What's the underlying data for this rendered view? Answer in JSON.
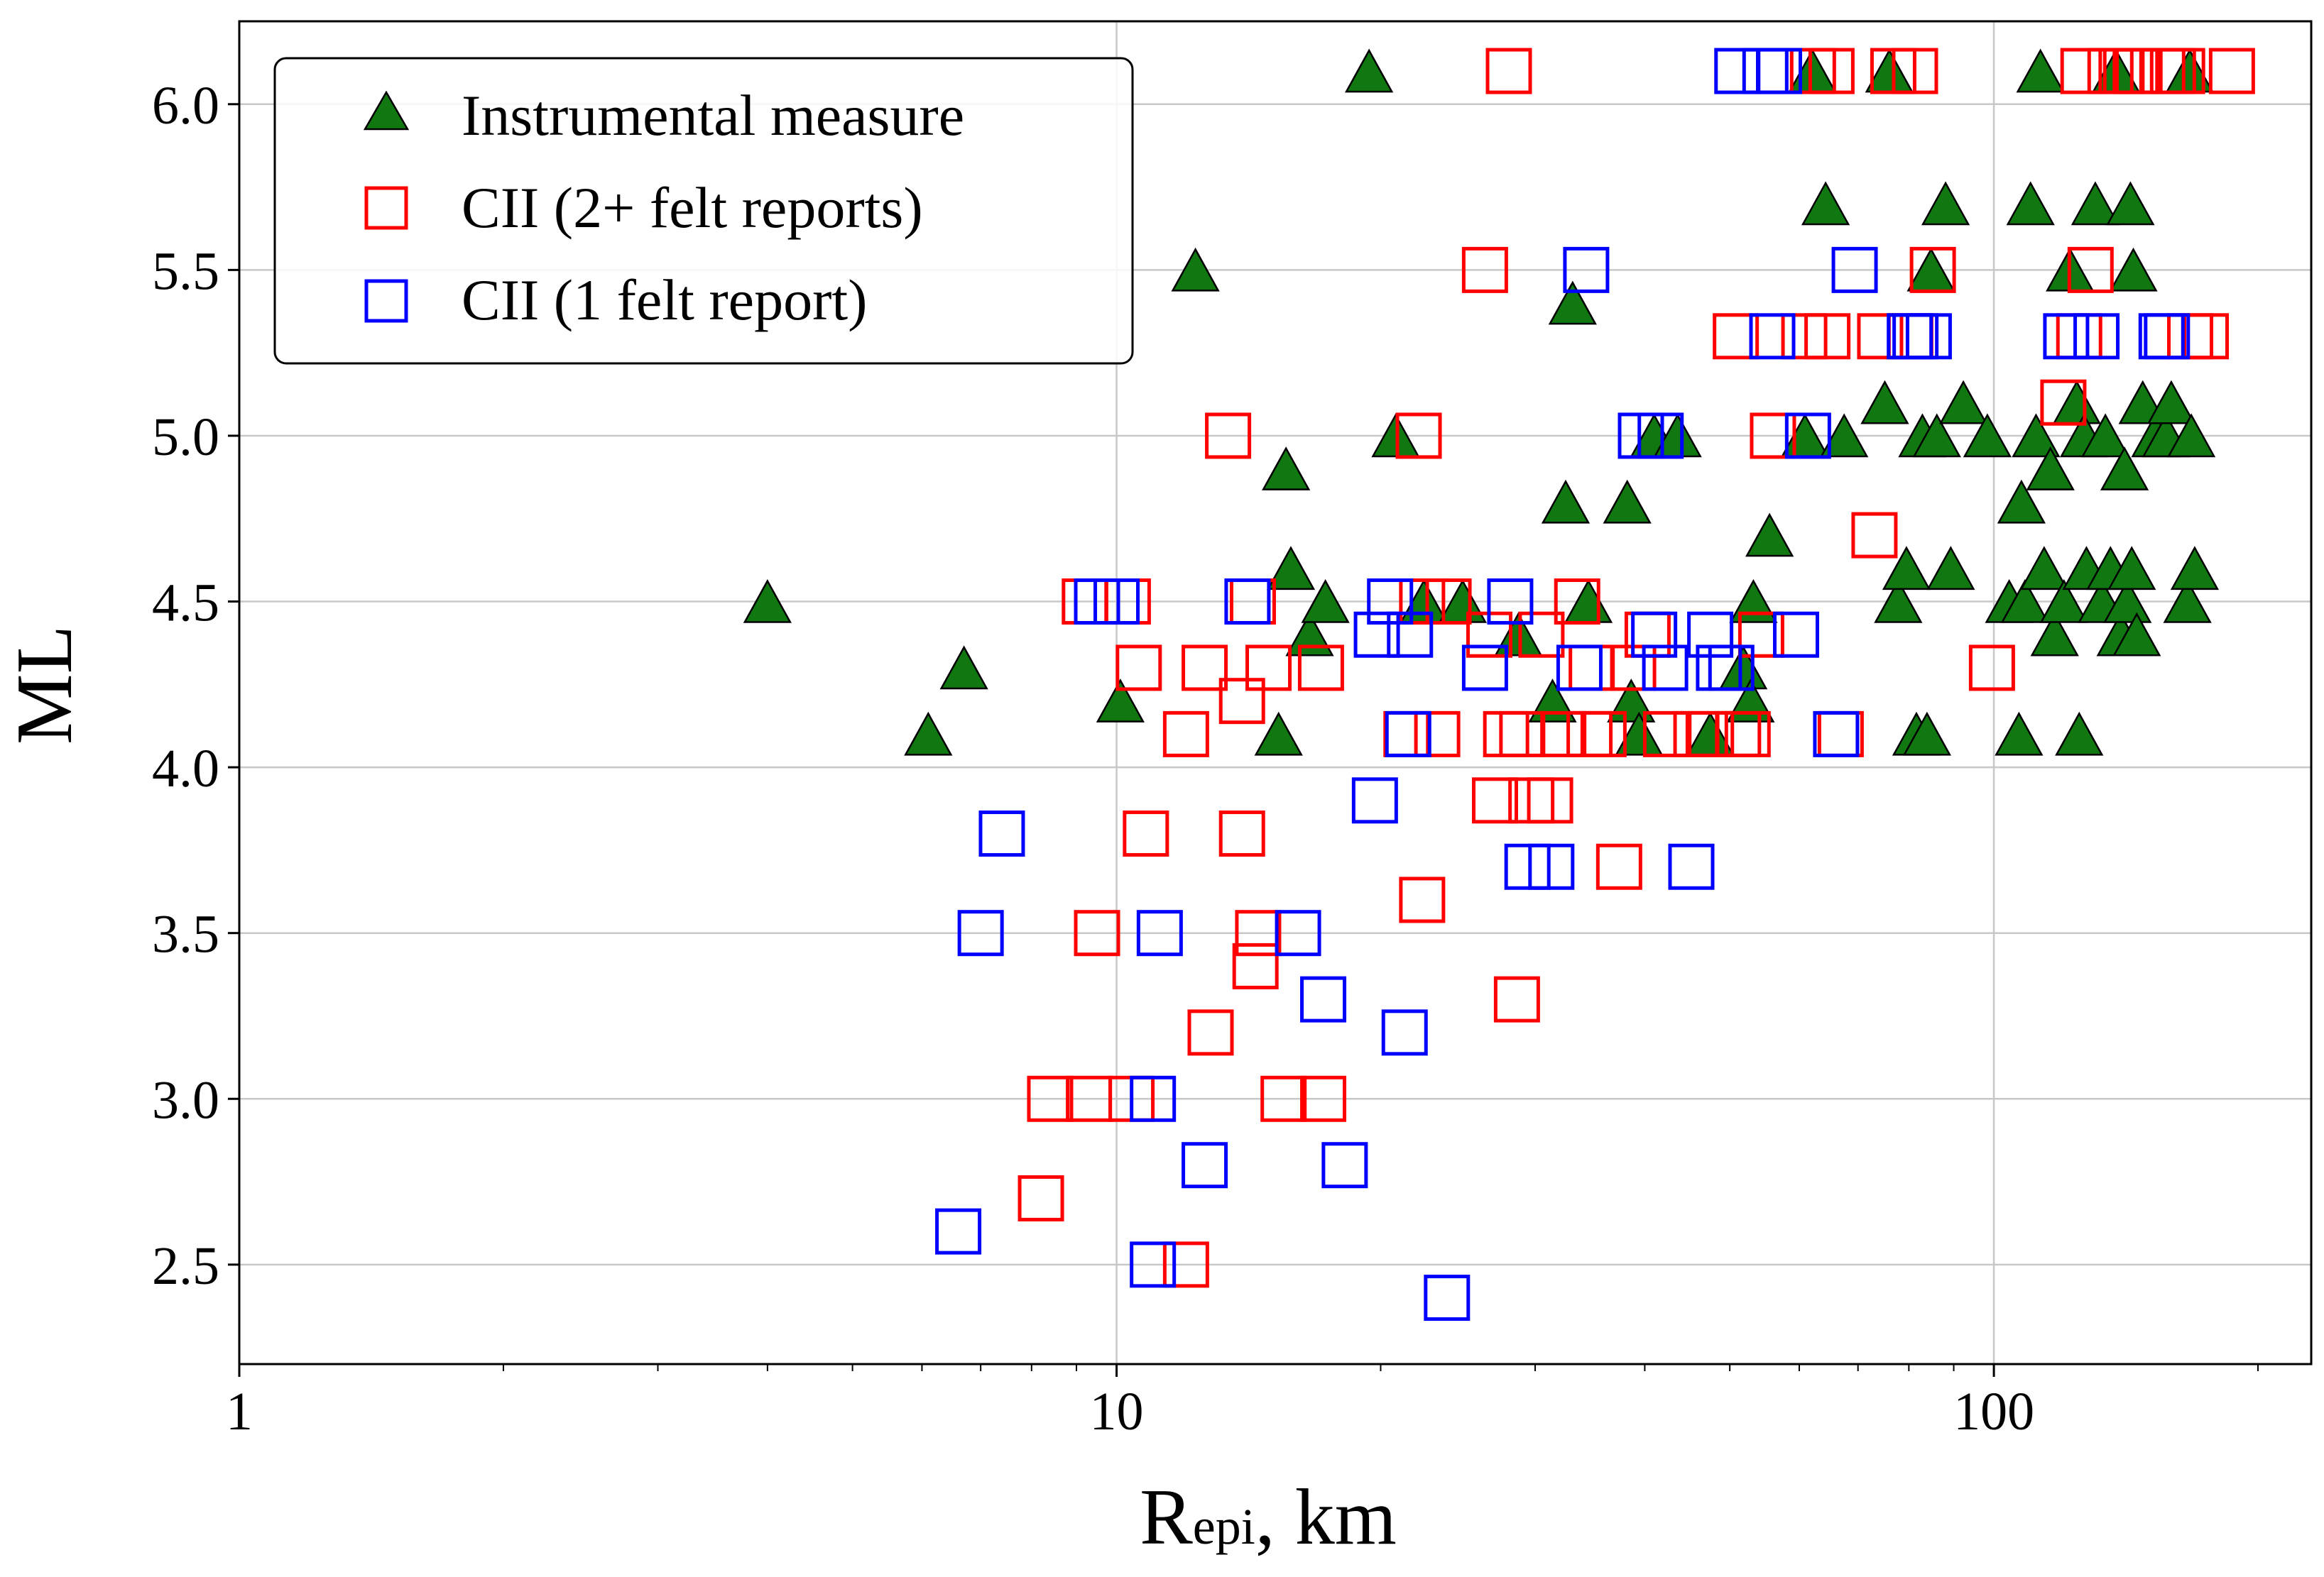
{
  "chart_data": {
    "type": "scatter",
    "title": "",
    "xlabel": "Repi, km",
    "xlabel_main": "R",
    "xlabel_sub": "epi",
    "xlabel_rest": ", km",
    "ylabel": "ML",
    "x_scale": "log",
    "xlim": [
      1,
      230
    ],
    "ylim": [
      2.2,
      6.25
    ],
    "x_major_ticks": [
      1,
      10,
      100
    ],
    "x_tick_labels": [
      "1",
      "10",
      "100"
    ],
    "y_ticks": [
      2.5,
      3.0,
      3.5,
      4.0,
      4.5,
      5.0,
      5.5,
      6.0
    ],
    "y_tick_labels": [
      "2.5",
      "3.0",
      "3.5",
      "4.0",
      "4.5",
      "5.0",
      "5.5",
      "6.0"
    ],
    "grid": true,
    "legend_position": "top-left",
    "series": [
      {
        "name": "Instrumental measure",
        "marker": "triangle",
        "color": "#117711",
        "edge": "#000000",
        "points": [
          [
            4.0,
            4.5
          ],
          [
            6.1,
            4.1
          ],
          [
            6.7,
            4.3
          ],
          [
            10.1,
            4.2
          ],
          [
            12.3,
            5.5
          ],
          [
            15.3,
            4.1
          ],
          [
            15.6,
            4.9
          ],
          [
            15.8,
            4.6
          ],
          [
            16.6,
            4.4
          ],
          [
            17.3,
            4.5
          ],
          [
            19.4,
            6.1
          ],
          [
            20.8,
            5.0
          ],
          [
            22.4,
            4.5
          ],
          [
            24.8,
            4.5
          ],
          [
            28.7,
            4.4
          ],
          [
            31.4,
            4.2
          ],
          [
            32.5,
            4.8
          ],
          [
            33.1,
            5.4
          ],
          [
            34.5,
            4.5
          ],
          [
            38.2,
            4.8
          ],
          [
            38.6,
            4.2
          ],
          [
            39.4,
            4.1
          ],
          [
            41.0,
            5.0
          ],
          [
            43.6,
            5.0
          ],
          [
            47.5,
            4.1
          ],
          [
            51.8,
            4.3
          ],
          [
            52.8,
            4.2
          ],
          [
            53.2,
            4.5
          ],
          [
            55.5,
            4.7
          ],
          [
            60.9,
            5.0
          ],
          [
            62.1,
            6.1
          ],
          [
            64.3,
            5.7
          ],
          [
            67.5,
            5.0
          ],
          [
            75.1,
            5.1
          ],
          [
            76.0,
            6.1
          ],
          [
            77.8,
            4.5
          ],
          [
            79.5,
            4.6
          ],
          [
            81.6,
            4.1
          ],
          [
            82.9,
            5.0
          ],
          [
            83.9,
            4.1
          ],
          [
            84.8,
            5.5
          ],
          [
            86.1,
            5.0
          ],
          [
            88.1,
            5.7
          ],
          [
            89.3,
            4.6
          ],
          [
            92.3,
            5.1
          ],
          [
            98.3,
            5.0
          ],
          [
            104.1,
            4.5
          ],
          [
            106.8,
            4.1
          ],
          [
            107.5,
            4.8
          ],
          [
            108.5,
            4.5
          ],
          [
            110.1,
            5.7
          ],
          [
            111.7,
            5.0
          ],
          [
            113.0,
            6.1
          ],
          [
            114.1,
            4.6
          ],
          [
            116.0,
            4.9
          ],
          [
            117.3,
            4.4
          ],
          [
            120.2,
            4.5
          ],
          [
            122.1,
            5.5
          ],
          [
            124.3,
            5.1
          ],
          [
            125.1,
            4.1
          ],
          [
            126.7,
            5.0
          ],
          [
            127.5,
            4.6
          ],
          [
            130.5,
            5.7
          ],
          [
            132.8,
            4.5
          ],
          [
            134.0,
            5.0
          ],
          [
            135.8,
            4.6
          ],
          [
            137.8,
            6.1
          ],
          [
            139.5,
            4.4
          ],
          [
            140.9,
            4.9
          ],
          [
            142.0,
            4.5
          ],
          [
            143.1,
            5.7
          ],
          [
            143.6,
            4.6
          ],
          [
            144.2,
            5.5
          ],
          [
            145.5,
            4.4
          ],
          [
            147.8,
            5.1
          ],
          [
            152.8,
            5.0
          ],
          [
            157.2,
            5.0
          ],
          [
            159.3,
            5.1
          ],
          [
            166.2,
            4.5
          ],
          [
            167.2,
            6.1
          ],
          [
            167.9,
            5.0
          ],
          [
            169.4,
            4.6
          ]
        ]
      },
      {
        "name": "CII (2+ felt reports)",
        "marker": "square",
        "color": "#ff0000",
        "points": [
          [
            8.2,
            2.7
          ],
          [
            8.4,
            3.0
          ],
          [
            9.3,
            3.0
          ],
          [
            9.2,
            4.5
          ],
          [
            9.5,
            3.5
          ],
          [
            10.3,
            4.5
          ],
          [
            10.4,
            3.0
          ],
          [
            10.6,
            4.3
          ],
          [
            10.8,
            3.8
          ],
          [
            12.0,
            4.1
          ],
          [
            12.0,
            2.5
          ],
          [
            12.6,
            4.3
          ],
          [
            12.8,
            3.2
          ],
          [
            13.4,
            5.0
          ],
          [
            13.9,
            4.2
          ],
          [
            13.9,
            3.8
          ],
          [
            14.3,
            4.5
          ],
          [
            14.4,
            3.4
          ],
          [
            14.5,
            3.5
          ],
          [
            14.9,
            4.3
          ],
          [
            15.5,
            3.0
          ],
          [
            17.1,
            4.3
          ],
          [
            17.2,
            3.0
          ],
          [
            21.4,
            4.1
          ],
          [
            22.1,
            5.0
          ],
          [
            22.3,
            3.6
          ],
          [
            22.3,
            4.5
          ],
          [
            23.2,
            4.1
          ],
          [
            23.9,
            4.5
          ],
          [
            26.3,
            5.5
          ],
          [
            26.6,
            4.4
          ],
          [
            27.0,
            3.9
          ],
          [
            27.8,
            4.1
          ],
          [
            28.0,
            6.1
          ],
          [
            28.6,
            3.3
          ],
          [
            29.0,
            4.1
          ],
          [
            29.7,
            3.9
          ],
          [
            30.5,
            4.4
          ],
          [
            31.2,
            3.9
          ],
          [
            32.3,
            4.1
          ],
          [
            33.5,
            4.5
          ],
          [
            34.6,
            4.1
          ],
          [
            34.8,
            4.3
          ],
          [
            35.9,
            4.1
          ],
          [
            37.4,
            3.7
          ],
          [
            38.8,
            4.3
          ],
          [
            40.3,
            4.4
          ],
          [
            42.3,
            4.1
          ],
          [
            45.8,
            4.1
          ],
          [
            47.6,
            4.1
          ],
          [
            50.8,
            5.3
          ],
          [
            51.1,
            4.1
          ],
          [
            52.4,
            4.1
          ],
          [
            54.3,
            4.4
          ],
          [
            56.0,
            5.0
          ],
          [
            60.8,
            5.3
          ],
          [
            62.2,
            6.1
          ],
          [
            64.6,
            5.3
          ],
          [
            65.3,
            6.1
          ],
          [
            66.9,
            4.1
          ],
          [
            73.1,
            4.7
          ],
          [
            74.2,
            5.3
          ],
          [
            76.8,
            6.1
          ],
          [
            80.3,
            5.3
          ],
          [
            81.3,
            6.1
          ],
          [
            85.2,
            5.5
          ],
          [
            99.5,
            4.3
          ],
          [
            120.0,
            5.1
          ],
          [
            125.1,
            5.3
          ],
          [
            126.5,
            6.1
          ],
          [
            128.9,
            5.5
          ],
          [
            135.8,
            6.1
          ],
          [
            139.8,
            6.1
          ],
          [
            145.1,
            6.1
          ],
          [
            146.1,
            6.1
          ],
          [
            155.6,
            6.1
          ],
          [
            160.0,
            6.1
          ],
          [
            163.9,
            6.1
          ],
          [
            167.4,
            5.3
          ],
          [
            174.4,
            5.3
          ],
          [
            186.8,
            6.1
          ]
        ]
      },
      {
        "name": "CII (1 felt report)",
        "marker": "square",
        "color": "#0000ff",
        "points": [
          [
            6.6,
            2.6
          ],
          [
            7.0,
            3.5
          ],
          [
            7.4,
            3.8
          ],
          [
            9.5,
            4.5
          ],
          [
            10.0,
            4.5
          ],
          [
            11.0,
            3.0
          ],
          [
            11.0,
            2.5
          ],
          [
            11.2,
            3.5
          ],
          [
            12.6,
            2.8
          ],
          [
            14.1,
            4.5
          ],
          [
            16.1,
            3.5
          ],
          [
            17.2,
            3.3
          ],
          [
            18.2,
            2.8
          ],
          [
            19.7,
            3.9
          ],
          [
            19.8,
            4.4
          ],
          [
            20.5,
            4.5
          ],
          [
            21.3,
            3.2
          ],
          [
            21.5,
            4.1
          ],
          [
            21.6,
            4.4
          ],
          [
            23.8,
            2.4
          ],
          [
            26.3,
            4.3
          ],
          [
            28.1,
            4.5
          ],
          [
            29.4,
            3.7
          ],
          [
            31.3,
            3.7
          ],
          [
            33.7,
            4.3
          ],
          [
            34.3,
            5.5
          ],
          [
            39.6,
            5.0
          ],
          [
            41.0,
            4.4
          ],
          [
            41.7,
            5.0
          ],
          [
            42.2,
            4.3
          ],
          [
            45.2,
            3.7
          ],
          [
            47.5,
            4.4
          ],
          [
            48.6,
            4.3
          ],
          [
            50.2,
            4.3
          ],
          [
            51.0,
            6.1
          ],
          [
            54.9,
            6.1
          ],
          [
            55.9,
            5.3
          ],
          [
            56.9,
            6.1
          ],
          [
            59.5,
            4.4
          ],
          [
            61.4,
            5.0
          ],
          [
            66.1,
            4.1
          ],
          [
            69.4,
            5.5
          ],
          [
            80.2,
            5.3
          ],
          [
            81.4,
            5.3
          ],
          [
            84.3,
            5.3
          ],
          [
            120.9,
            5.3
          ],
          [
            130.9,
            5.3
          ],
          [
            155.3,
            5.3
          ],
          [
            157.5,
            5.3
          ]
        ]
      }
    ],
    "y_range_clip": 6.25,
    "x_limit_right": 230,
    "x_limit_left": 1,
    "y_min_value": 2.2
  }
}
